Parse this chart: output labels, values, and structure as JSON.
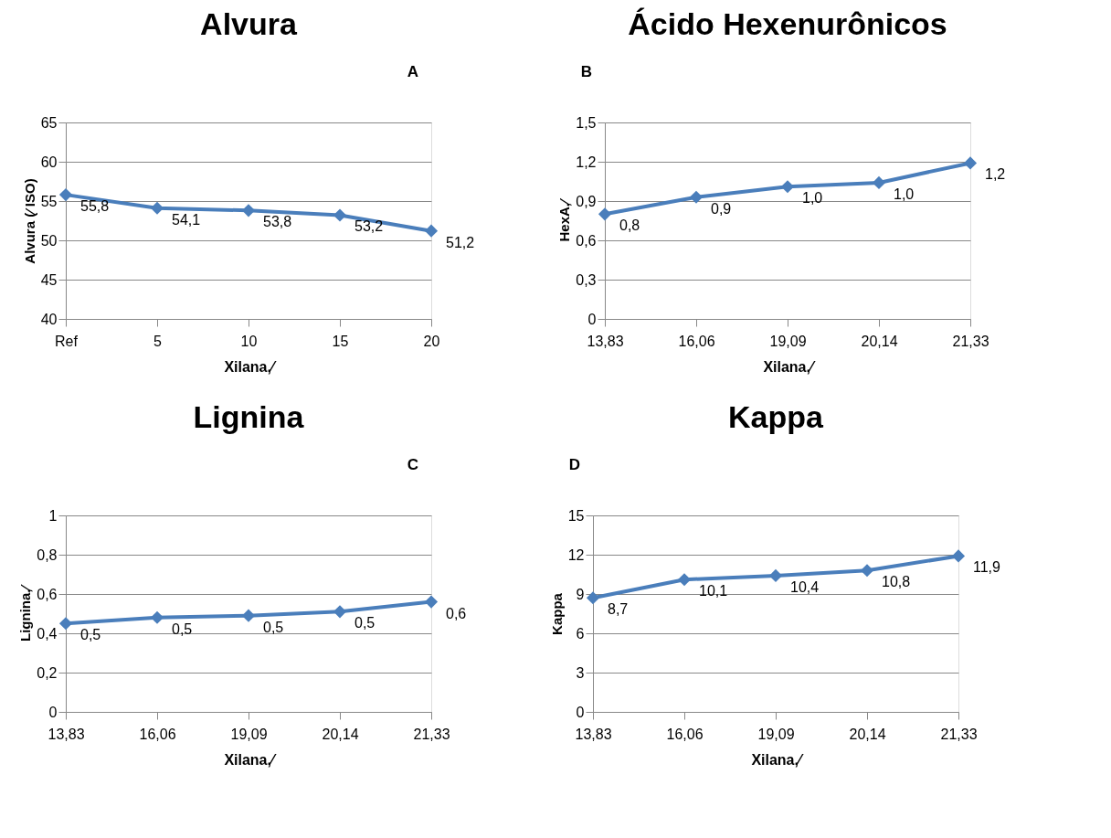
{
  "chart_data": [
    {
      "type": "line",
      "title": "Alvura",
      "xlabel": "Xilana,⁄",
      "ylabel": "Alvura (⁄  ISO)",
      "annotations": [
        "A"
      ],
      "categories": [
        "Ref",
        "5",
        "10",
        "15",
        "20"
      ],
      "series": [
        {
          "color": "#4a7ebb",
          "values": [
            55.8,
            54.1,
            53.8,
            53.2,
            51.2
          ],
          "value_labels": [
            "55,8",
            "54,1",
            "53,8",
            "53,2",
            "51,2"
          ]
        }
      ],
      "ylim": [
        40,
        65
      ],
      "yticks": [
        40,
        45,
        50,
        55,
        60,
        65
      ],
      "grid": "y",
      "marker": "diamond",
      "line_style": "solid",
      "legend": false
    },
    {
      "type": "line",
      "title": "Ácido Hexenurônicos",
      "xlabel": "Xilana,⁄",
      "ylabel": "HexA,⁄",
      "annotations": [
        "B"
      ],
      "categories": [
        "13,83",
        "16,06",
        "19,09",
        "20,14",
        "21,33"
      ],
      "series": [
        {
          "color": "#4a7ebb",
          "values": [
            0.8,
            0.93,
            1.01,
            1.04,
            1.19
          ],
          "value_labels": [
            "0,8",
            "0,9",
            "1,0",
            "1,0",
            "1,2"
          ]
        }
      ],
      "ylim": [
        0,
        1.5
      ],
      "yticks": [
        0,
        {
          "value": 0.3,
          "label": "0,3"
        },
        {
          "value": 0.6,
          "label": "0,6"
        },
        {
          "value": 0.9,
          "label": "0,9"
        },
        {
          "value": 1.2,
          "label": "1,2"
        },
        {
          "value": 1.5,
          "label": "1,5"
        }
      ],
      "grid": "y",
      "marker": "diamond",
      "line_style": "solid",
      "legend": false
    },
    {
      "type": "line",
      "title": "Lignina",
      "xlabel": "Xilana,⁄",
      "ylabel": "Lignina,⁄",
      "annotations": [
        "C"
      ],
      "categories": [
        "13,83",
        "16,06",
        "19,09",
        "20,14",
        "21,33"
      ],
      "series": [
        {
          "color": "#4a7ebb",
          "values": [
            0.45,
            0.48,
            0.49,
            0.51,
            0.56
          ],
          "value_labels": [
            "0,5",
            "0,5",
            "0,5",
            "0,5",
            "0,6"
          ]
        }
      ],
      "ylim": [
        0,
        1
      ],
      "yticks": [
        0,
        {
          "value": 0.2,
          "label": "0,2"
        },
        {
          "value": 0.4,
          "label": "0,4"
        },
        {
          "value": 0.6,
          "label": "0,6"
        },
        {
          "value": 0.8,
          "label": "0,8"
        },
        1
      ],
      "grid": "y",
      "marker": "diamond",
      "line_style": "solid",
      "legend": false
    },
    {
      "type": "line",
      "title": "Kappa",
      "xlabel": "Xilana,⁄",
      "ylabel": "Kappa",
      "annotations": [
        "D"
      ],
      "categories": [
        "13,83",
        "16,06",
        "19,09",
        "20,14",
        "21,33"
      ],
      "series": [
        {
          "color": "#4a7ebb",
          "values": [
            8.7,
            10.1,
            10.4,
            10.8,
            11.9
          ],
          "value_labels": [
            "8,7",
            "10,1",
            "10,4",
            "10,8",
            "11,9"
          ]
        }
      ],
      "ylim": [
        0,
        15
      ],
      "yticks": [
        0,
        3,
        6,
        9,
        12,
        15
      ],
      "grid": "y",
      "marker": "diamond",
      "line_style": "solid",
      "legend": false
    }
  ]
}
